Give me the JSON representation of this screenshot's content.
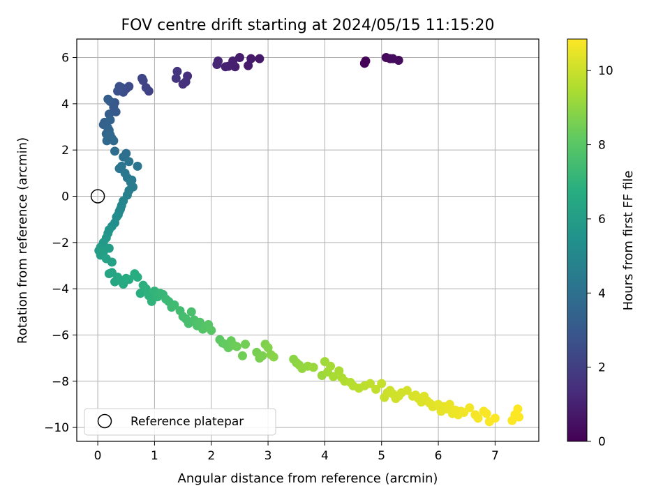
{
  "chart_data": {
    "type": "scatter",
    "title": "FOV centre drift starting at 2024/05/15 11:15:20",
    "xlabel": "Angular distance from reference (arcmin)",
    "ylabel": "Rotation from reference (arcmin)",
    "xlim": [
      -0.37,
      7.77
    ],
    "ylim": [
      -10.6,
      6.8
    ],
    "xticks": [
      0,
      1,
      2,
      3,
      4,
      5,
      6,
      7
    ],
    "xtick_labels": [
      "0",
      "1",
      "2",
      "3",
      "4",
      "5",
      "6",
      "7"
    ],
    "yticks": [
      -10,
      -8,
      -6,
      -4,
      -2,
      0,
      2,
      4,
      6
    ],
    "ytick_labels": [
      "−10",
      "−8",
      "−6",
      "−4",
      "−2",
      "0",
      "2",
      "4",
      "6"
    ],
    "grid": true,
    "colormap": "viridis",
    "colorbar": {
      "label": "Hours from first FF file",
      "range": [
        0,
        10.85
      ],
      "ticks": [
        0,
        2,
        4,
        6,
        8,
        10
      ],
      "tick_labels": [
        "0",
        "2",
        "4",
        "6",
        "8",
        "10"
      ]
    },
    "legend": {
      "placement": "lower-left",
      "entries": [
        "Reference platepar"
      ]
    },
    "reference_point": {
      "x": 0,
      "y": 0,
      "label": "Reference platepar"
    },
    "series": [
      {
        "x": [
          4.7,
          4.72,
          5.08,
          5.15,
          5.2,
          5.3,
          2.85,
          2.7,
          2.65,
          2.5,
          2.42,
          2.38,
          2.3,
          2.25,
          2.12,
          2.1,
          1.58,
          1.55,
          1.5,
          1.4,
          1.38,
          0.9,
          0.85,
          0.8,
          0.78,
          0.55,
          0.5,
          0.45,
          0.42,
          0.38,
          0.35,
          0.3,
          0.32,
          0.28,
          0.22,
          0.2,
          0.18,
          0.12,
          0.1,
          0.22,
          0.18,
          0.15,
          0.16,
          0.2,
          0.25,
          0.22,
          0.28,
          0.3,
          0.5,
          0.45,
          0.55,
          0.42,
          0.38,
          0.7,
          0.48,
          0.52,
          0.6,
          0.62,
          0.58,
          0.55,
          0.52,
          0.45,
          0.42,
          0.4,
          0.38,
          0.36,
          0.33,
          0.3,
          0.25,
          0.2,
          0.18,
          0.15,
          0.1,
          0.05,
          0.02,
          0.05,
          0.1,
          0.15,
          0.25,
          0.2
        ],
        "y": [
          5.75,
          5.85,
          6.0,
          5.95,
          5.95,
          5.88,
          5.95,
          5.95,
          5.65,
          6.0,
          5.6,
          5.85,
          5.62,
          5.6,
          5.85,
          5.7,
          5.2,
          4.95,
          4.85,
          5.4,
          5.1,
          4.55,
          4.7,
          5.0,
          5.1,
          4.75,
          4.65,
          4.5,
          4.7,
          4.75,
          4.55,
          4.05,
          3.65,
          3.85,
          4.1,
          3.55,
          4.2,
          3.2,
          3.1,
          3.3,
          2.95,
          2.7,
          2.4,
          2.85,
          2.5,
          2.65,
          2.4,
          1.95,
          1.85,
          1.7,
          1.5,
          1.3,
          1.2,
          1.3,
          1.0,
          0.8,
          0.7,
          0.4,
          0.6,
          0.25,
          0.05,
          -0.2,
          -0.4,
          -0.55,
          -0.65,
          -0.8,
          -0.9,
          -1.15,
          -1.3,
          -1.45,
          -1.6,
          -1.8,
          -2.0,
          -2.2,
          -2.35,
          -2.55,
          -2.4,
          -2.7,
          -2.85,
          -2.25
        ],
        "color_values": [
          0.1,
          0.12,
          0.25,
          0.28,
          0.3,
          0.32,
          0.7,
          0.75,
          0.8,
          0.85,
          0.9,
          0.95,
          1.0,
          1.05,
          1.1,
          1.15,
          1.4,
          1.45,
          1.5,
          1.6,
          1.65,
          2.1,
          2.15,
          2.2,
          2.25,
          2.45,
          2.5,
          2.55,
          2.6,
          2.65,
          2.7,
          2.95,
          3.05,
          3.0,
          3.1,
          3.15,
          3.2,
          3.3,
          3.35,
          3.4,
          3.45,
          3.55,
          3.65,
          3.5,
          3.6,
          3.7,
          3.75,
          3.85,
          3.95,
          4.0,
          4.1,
          4.15,
          4.2,
          4.25,
          4.3,
          4.35,
          4.4,
          4.5,
          4.45,
          4.55,
          4.7,
          4.85,
          4.95,
          5.0,
          5.05,
          5.1,
          5.2,
          5.3,
          5.4,
          5.5,
          5.6,
          5.7,
          5.8,
          5.9,
          6.0,
          6.05,
          6.1,
          6.15,
          6.2,
          6.0
        ]
      },
      {
        "x": [
          0.2,
          0.25,
          0.3,
          0.35,
          0.4,
          0.45,
          0.5,
          0.55,
          0.65,
          0.7,
          0.75,
          0.8,
          0.85,
          0.9,
          0.95,
          1.0,
          1.05,
          1.1,
          1.15,
          1.2,
          1.25,
          1.3,
          1.35,
          1.45,
          1.5,
          1.55,
          1.6,
          1.65,
          1.7,
          1.75,
          1.8,
          1.85,
          1.9,
          1.95,
          2.0,
          2.15,
          2.2,
          2.25,
          2.3,
          2.35,
          2.4,
          2.45,
          2.55,
          2.6,
          2.8,
          2.85,
          2.9,
          2.95,
          3.0,
          3.05,
          3.1
        ],
        "y": [
          -3.35,
          -3.3,
          -3.7,
          -3.5,
          -3.65,
          -3.8,
          -3.55,
          -3.6,
          -3.35,
          -3.5,
          -4.2,
          -3.85,
          -4.0,
          -4.3,
          -4.55,
          -4.1,
          -4.35,
          -4.2,
          -4.25,
          -4.45,
          -4.55,
          -4.8,
          -4.7,
          -4.95,
          -5.2,
          -5.3,
          -5.5,
          -5.0,
          -5.35,
          -5.6,
          -5.45,
          -5.75,
          -5.65,
          -5.55,
          -5.8,
          -6.2,
          -6.35,
          -6.4,
          -6.55,
          -6.25,
          -6.45,
          -6.5,
          -6.9,
          -6.4,
          -6.75,
          -7.0,
          -6.9,
          -6.4,
          -6.55,
          -6.85,
          -6.95
        ],
        "color_values": [
          6.3,
          6.35,
          6.4,
          6.45,
          6.5,
          6.55,
          6.6,
          6.65,
          6.7,
          6.75,
          6.8,
          6.85,
          6.9,
          6.95,
          7.0,
          7.05,
          7.1,
          7.15,
          7.2,
          7.25,
          7.3,
          7.35,
          7.4,
          7.45,
          7.5,
          7.55,
          7.6,
          7.65,
          7.7,
          7.75,
          7.8,
          7.85,
          7.9,
          7.95,
          8.0,
          8.1,
          8.15,
          8.2,
          8.25,
          8.3,
          8.35,
          8.4,
          8.45,
          8.5,
          8.55,
          8.6,
          8.65,
          8.7,
          8.75,
          8.8,
          8.85
        ]
      },
      {
        "x": [
          3.45,
          3.5,
          3.55,
          3.6,
          3.7,
          3.8,
          3.95,
          4.0,
          4.05,
          4.1,
          4.15,
          4.25,
          4.3,
          4.35,
          4.45,
          4.5,
          4.6,
          4.7,
          4.8,
          4.9,
          5.0,
          5.05,
          5.1,
          5.15,
          5.2,
          5.25,
          5.3,
          5.35,
          5.45,
          5.55,
          5.6,
          5.65,
          5.7,
          5.75,
          5.8,
          5.85,
          5.9,
          5.95,
          6.0,
          6.05,
          6.1,
          6.15,
          6.2,
          6.25,
          6.3,
          6.35,
          6.4,
          6.45,
          6.55,
          6.65,
          6.7,
          6.8,
          6.85,
          6.9,
          7.0,
          7.3,
          7.35,
          7.4,
          7.42
        ],
        "y": [
          -7.05,
          -7.2,
          -7.3,
          -7.45,
          -7.35,
          -7.4,
          -7.75,
          -7.15,
          -7.6,
          -7.35,
          -7.8,
          -7.55,
          -7.85,
          -8.0,
          -8.05,
          -8.2,
          -8.3,
          -8.2,
          -8.1,
          -8.35,
          -8.1,
          -8.7,
          -8.5,
          -8.4,
          -8.55,
          -8.75,
          -8.65,
          -8.5,
          -8.4,
          -8.65,
          -8.6,
          -8.75,
          -8.9,
          -8.65,
          -8.85,
          -8.95,
          -9.1,
          -9.05,
          -9.0,
          -9.3,
          -9.1,
          -9.2,
          -9.0,
          -9.4,
          -9.25,
          -9.45,
          -9.3,
          -9.35,
          -9.15,
          -9.45,
          -9.6,
          -9.3,
          -9.4,
          -9.75,
          -9.6,
          -9.7,
          -9.45,
          -9.2,
          -9.55
        ],
        "color_values": [
          8.9,
          8.95,
          9.0,
          9.05,
          9.1,
          9.15,
          9.2,
          9.25,
          9.3,
          9.35,
          9.4,
          9.45,
          9.5,
          9.55,
          9.6,
          9.65,
          9.7,
          9.75,
          9.8,
          9.85,
          9.9,
          9.95,
          10.0,
          10.02,
          10.05,
          10.08,
          10.1,
          10.12,
          10.15,
          10.2,
          10.22,
          10.25,
          10.28,
          10.3,
          10.32,
          10.35,
          10.38,
          10.4,
          10.42,
          10.45,
          10.48,
          10.5,
          10.52,
          10.55,
          10.58,
          10.6,
          10.62,
          10.65,
          10.68,
          10.7,
          10.72,
          10.75,
          10.78,
          10.8,
          10.82,
          10.83,
          10.84,
          10.85,
          10.85
        ]
      }
    ]
  }
}
